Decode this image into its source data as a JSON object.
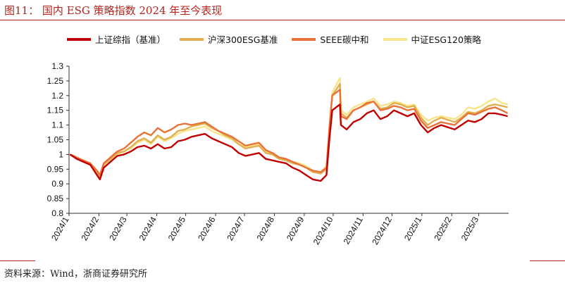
{
  "title": "图11： 国内 ESG 策略指数 2024 年至今表现",
  "source": "资料来源：Wind，浙商证券研究所",
  "chart_data": {
    "type": "line",
    "title": "图11： 国内 ESG 策略指数 2024 年至今表现",
    "xlabel": "",
    "ylabel": "",
    "ylim": [
      0.8,
      1.3
    ],
    "yticks": [
      0.8,
      0.85,
      0.9,
      0.95,
      1,
      1.05,
      1.1,
      1.15,
      1.2,
      1.25,
      1.3
    ],
    "ytick_labels": [
      "0.8",
      "0.85",
      "0.9",
      "0.95",
      "1",
      "1.05",
      "1.1",
      "1.15",
      "1.2",
      "1.25",
      "1.3"
    ],
    "xticks": [
      "2024/1",
      "2024/2",
      "2024/3",
      "2024/4",
      "2024/5",
      "2024/6",
      "2024/7",
      "2024/8",
      "2024/9",
      "2024/10",
      "2024/11",
      "2024/12",
      "2025/1",
      "2025/2",
      "2025/3"
    ],
    "legend_position": "top",
    "grid": false,
    "x": [
      "2024/1/2",
      "2024/1/9",
      "2024/1/16",
      "2024/1/23",
      "2024/1/30",
      "2024/2/2",
      "2024/2/6",
      "2024/2/20",
      "2024/2/27",
      "2024/3/5",
      "2024/3/12",
      "2024/3/19",
      "2024/3/26",
      "2024/4/2",
      "2024/4/9",
      "2024/4/16",
      "2024/4/23",
      "2024/4/30",
      "2024/5/7",
      "2024/5/14",
      "2024/5/21",
      "2024/5/28",
      "2024/6/4",
      "2024/6/11",
      "2024/6/18",
      "2024/6/25",
      "2024/7/2",
      "2024/7/9",
      "2024/7/16",
      "2024/7/23",
      "2024/7/30",
      "2024/8/6",
      "2024/8/13",
      "2024/8/20",
      "2024/8/27",
      "2024/9/3",
      "2024/9/10",
      "2024/9/18",
      "2024/9/24",
      "2024/9/27",
      "2024/9/30",
      "2024/10/8",
      "2024/10/9",
      "2024/10/15",
      "2024/10/22",
      "2024/10/29",
      "2024/11/5",
      "2024/11/12",
      "2024/11/19",
      "2024/11/26",
      "2024/12/3",
      "2024/12/10",
      "2024/12/17",
      "2024/12/24",
      "2024/12/31",
      "2025/1/7",
      "2025/1/14",
      "2025/1/21",
      "2025/2/4",
      "2025/2/11",
      "2025/2/18",
      "2025/2/25",
      "2025/3/4",
      "2025/3/11",
      "2025/3/18",
      "2025/3/25",
      "2025/3/31"
    ],
    "series": [
      {
        "name": "上证综指（基准）",
        "color": "#c00000",
        "values": [
          1.0,
          0.985,
          0.975,
          0.965,
          0.93,
          0.915,
          0.955,
          0.995,
          1.0,
          1.01,
          1.025,
          1.03,
          1.02,
          1.035,
          1.02,
          1.025,
          1.045,
          1.05,
          1.06,
          1.065,
          1.07,
          1.055,
          1.045,
          1.035,
          1.025,
          1.005,
          0.995,
          1.0,
          1.005,
          0.985,
          0.98,
          0.975,
          0.97,
          0.955,
          0.945,
          0.93,
          0.915,
          0.91,
          0.93,
          1.05,
          1.15,
          1.17,
          1.1,
          1.085,
          1.11,
          1.12,
          1.14,
          1.15,
          1.12,
          1.13,
          1.15,
          1.14,
          1.13,
          1.14,
          1.1,
          1.075,
          1.09,
          1.1,
          1.085,
          1.1,
          1.115,
          1.11,
          1.12,
          1.14,
          1.14,
          1.135,
          1.13
        ]
      },
      {
        "name": "沪深300ESG基准",
        "color": "#e0b050",
        "values": [
          1.0,
          0.99,
          0.975,
          0.965,
          0.94,
          0.925,
          0.965,
          1.005,
          1.01,
          1.025,
          1.045,
          1.055,
          1.04,
          1.065,
          1.05,
          1.06,
          1.08,
          1.085,
          1.095,
          1.1,
          1.105,
          1.09,
          1.08,
          1.065,
          1.055,
          1.035,
          1.02,
          1.025,
          1.03,
          1.005,
          1.0,
          0.985,
          0.98,
          0.97,
          0.965,
          0.955,
          0.94,
          0.935,
          0.95,
          1.08,
          1.2,
          1.24,
          1.14,
          1.125,
          1.15,
          1.16,
          1.17,
          1.18,
          1.155,
          1.16,
          1.175,
          1.17,
          1.16,
          1.165,
          1.125,
          1.1,
          1.115,
          1.125,
          1.11,
          1.125,
          1.145,
          1.14,
          1.15,
          1.165,
          1.17,
          1.165,
          1.16
        ]
      },
      {
        "name": "SEEE碳中和",
        "color": "#e8733a",
        "values": [
          1.0,
          0.99,
          0.98,
          0.97,
          0.945,
          0.93,
          0.97,
          1.01,
          1.02,
          1.04,
          1.06,
          1.075,
          1.065,
          1.09,
          1.075,
          1.085,
          1.1,
          1.105,
          1.1,
          1.105,
          1.11,
          1.095,
          1.08,
          1.07,
          1.06,
          1.045,
          1.03,
          1.035,
          1.04,
          1.015,
          1.005,
          0.99,
          0.985,
          0.975,
          0.965,
          0.955,
          0.945,
          0.94,
          0.955,
          1.09,
          1.2,
          1.22,
          1.13,
          1.12,
          1.15,
          1.16,
          1.175,
          1.18,
          1.15,
          1.155,
          1.165,
          1.16,
          1.15,
          1.155,
          1.115,
          1.09,
          1.1,
          1.11,
          1.1,
          1.12,
          1.14,
          1.135,
          1.145,
          1.155,
          1.16,
          1.15,
          1.14
        ]
      },
      {
        "name": "中证ESG120策略",
        "color": "#f8e48a",
        "values": [
          1.0,
          0.99,
          0.975,
          0.965,
          0.94,
          0.925,
          0.965,
          1.0,
          1.01,
          1.02,
          1.04,
          1.05,
          1.035,
          1.06,
          1.045,
          1.055,
          1.07,
          1.08,
          1.085,
          1.09,
          1.095,
          1.08,
          1.07,
          1.06,
          1.05,
          1.035,
          1.025,
          1.03,
          1.035,
          1.01,
          1.005,
          0.99,
          0.985,
          0.975,
          0.97,
          0.96,
          0.945,
          0.94,
          0.96,
          1.09,
          1.21,
          1.26,
          1.15,
          1.135,
          1.16,
          1.17,
          1.18,
          1.19,
          1.165,
          1.17,
          1.18,
          1.175,
          1.165,
          1.17,
          1.135,
          1.115,
          1.125,
          1.13,
          1.12,
          1.135,
          1.16,
          1.155,
          1.165,
          1.18,
          1.19,
          1.175,
          1.17
        ]
      }
    ]
  }
}
